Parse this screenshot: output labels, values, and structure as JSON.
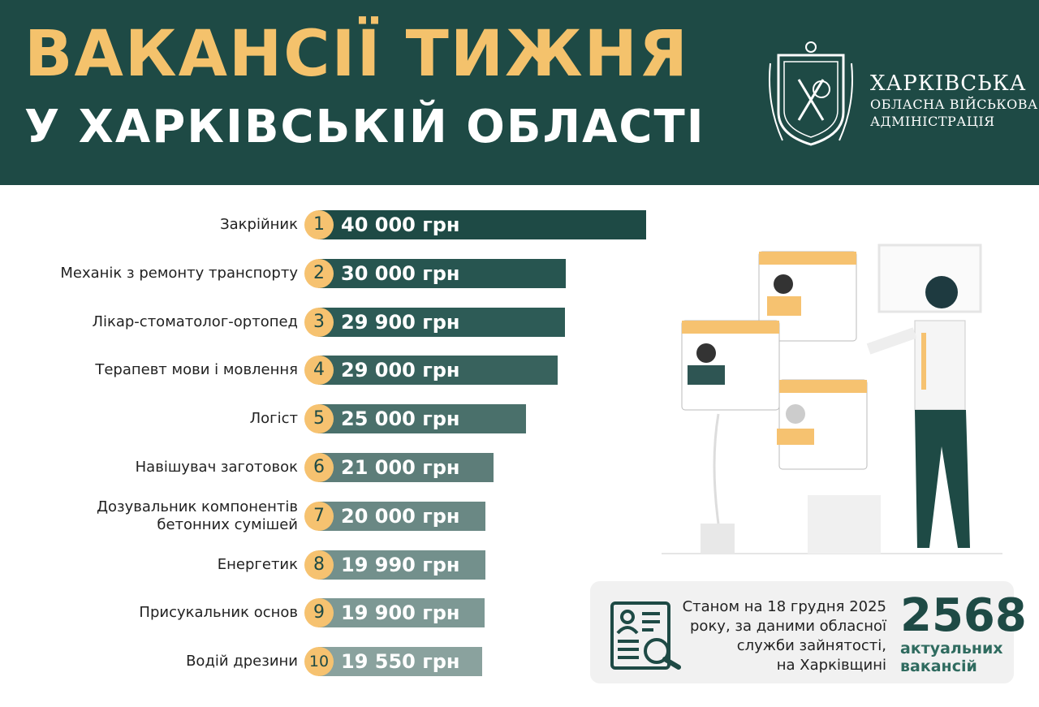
{
  "header": {
    "title_line1": "ВАКАНСІЇ ТИЖНЯ",
    "title_line2": "У ХАРКІВСЬКІЙ ОБЛАСТІ",
    "org_line1": "ХАРКІВСЬКА",
    "org_line2": "ОБЛАСНА ВІЙСЬКОВА",
    "org_line3": "АДМІНІСТРАЦІЯ"
  },
  "chart_data": {
    "type": "bar",
    "orientation": "horizontal",
    "unit": "грн",
    "categories": [
      "Закрійник",
      "Механік з ремонту транспорту",
      "Лікар-стоматолог-ортопед",
      "Терапевт мови і мовлення",
      "Логіст",
      "Навішувач заготовок",
      "Дозувальник компонентів бетонних сумішей",
      "Енергетик",
      "Присукальник основ",
      "Водій дрезини"
    ],
    "ranks": [
      "1",
      "2",
      "3",
      "4",
      "5",
      "6",
      "7",
      "8",
      "9",
      "10"
    ],
    "values": [
      40000,
      30000,
      29900,
      29000,
      25000,
      21000,
      20000,
      19990,
      19900,
      19550
    ],
    "value_labels": [
      "40 000 грн",
      "30 000 грн",
      "29 900 грн",
      "29 000 грн",
      "25 000 грн",
      "21 000 грн",
      "20 000 грн",
      "19 990 грн",
      "19 900 грн",
      "19 550 грн"
    ],
    "colors": [
      "#1e4a45",
      "#275550",
      "#2d5b56",
      "#38625d",
      "#4a706b",
      "#5d7d79",
      "#6a8884",
      "#73908c",
      "#7d9894",
      "#8aa29e"
    ]
  },
  "info": {
    "text_lines": [
      "Станом на 18 грудня 2025",
      "року, за даними обласної",
      "служби зайнятості,",
      "на Харківщині"
    ],
    "count": "2568",
    "count_label1": "актуальних",
    "count_label2": "вакансій"
  },
  "colors": {
    "header_bg": "#1e4a45",
    "title_accent": "#f4c26c",
    "rank_badge": "#f6c270"
  }
}
